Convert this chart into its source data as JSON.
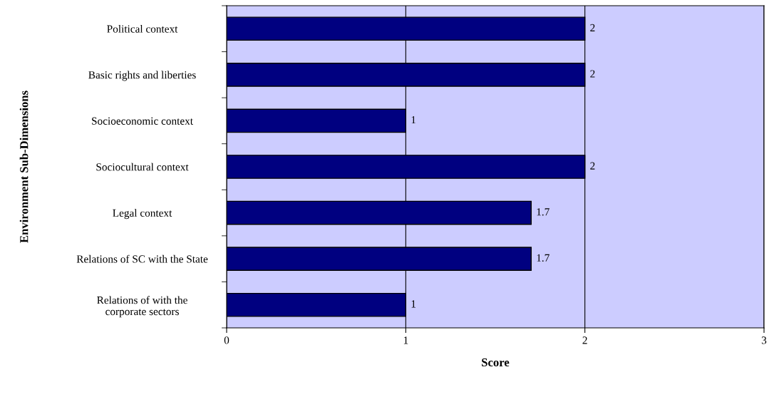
{
  "chart_data": {
    "type": "bar",
    "orientation": "horizontal",
    "xlabel": "Score",
    "ylabel": "Environment Sub-Dimensions",
    "categories": [
      "Political context",
      "Basic rights and liberties",
      "Socioeconomic context",
      "Sociocultural context",
      "Legal context",
      "Relations of SC with the State",
      "Relations of with the corporate sectors"
    ],
    "values": [
      2,
      2,
      1,
      2,
      1.7,
      1.7,
      1
    ],
    "color": "#000080",
    "xlim": [
      0,
      3
    ],
    "xticks": [
      0,
      1,
      2,
      3
    ],
    "grid": "x",
    "data_labels": true
  }
}
